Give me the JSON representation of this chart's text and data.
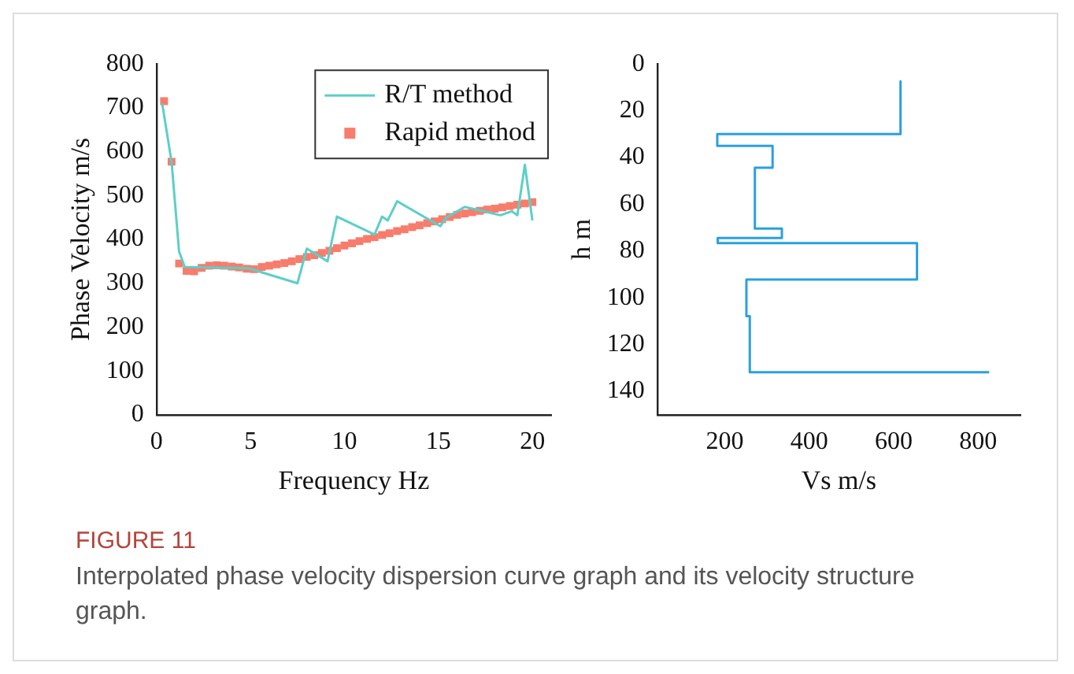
{
  "chart_data": [
    {
      "type": "line",
      "xlabel": "Frequency Hz",
      "ylabel": "Phase Velocity m/s",
      "xlim": [
        0,
        21
      ],
      "xticks": [
        0,
        5,
        10,
        15,
        20
      ],
      "ylim": [
        0,
        800
      ],
      "yticks": [
        0,
        100,
        200,
        300,
        400,
        500,
        600,
        700,
        800
      ],
      "grid": false,
      "legend": "top right",
      "annotations": [
        "FIGURE 11",
        "Interpolated phase velocity dispersion curve graph and its velocity structure graph."
      ],
      "series": [
        {
          "name": "R/T method",
          "color": "#5ccfc8",
          "marker": "none",
          "line_style": "solid",
          "x": [
            0.3,
            0.8,
            1.2,
            1.5,
            4.9,
            7.5,
            8.0,
            9.1,
            9.6,
            11.6,
            12.0,
            12.3,
            12.8,
            15.1,
            15.4,
            16.4,
            18.3,
            18.9,
            19.2,
            19.6,
            20.0
          ],
          "values": [
            710,
            577,
            372,
            337,
            334,
            300,
            379,
            350,
            452,
            411,
            452,
            443,
            487,
            430,
            449,
            474,
            455,
            464,
            455,
            570,
            443
          ]
        },
        {
          "name": "Rapid method",
          "type": "scatter",
          "color": "#f87c6c",
          "marker": "square",
          "x": [
            0.4,
            0.8,
            1.2,
            1.6,
            2.0,
            2.4,
            2.8,
            3.2,
            3.6,
            4.0,
            4.4,
            4.8,
            5.2,
            5.6,
            6.0,
            6.4,
            6.8,
            7.2,
            7.6,
            8.0,
            8.4,
            8.8,
            9.2,
            9.6,
            10.0,
            10.4,
            10.8,
            11.2,
            11.6,
            12.0,
            12.4,
            12.8,
            13.2,
            13.6,
            14.0,
            14.4,
            14.8,
            15.2,
            15.6,
            16.0,
            16.4,
            16.8,
            17.2,
            17.6,
            18.0,
            18.4,
            18.8,
            19.2,
            19.6,
            20.0
          ],
          "values": [
            715,
            577,
            345,
            328,
            327,
            335,
            340,
            341,
            340,
            338,
            336,
            333,
            332,
            337,
            340,
            343,
            346,
            350,
            355,
            360,
            364,
            369,
            374,
            380,
            386,
            391,
            396,
            401,
            405,
            410,
            414,
            419,
            423,
            428,
            432,
            437,
            441,
            446,
            451,
            456,
            459,
            462,
            465,
            468,
            470,
            473,
            476,
            479,
            482,
            485
          ]
        }
      ]
    },
    {
      "type": "line",
      "xlabel": "Vs m/s",
      "ylabel": "h m",
      "xlim": [
        40,
        900
      ],
      "xticks": [
        200,
        400,
        600,
        800
      ],
      "ylim": [
        150,
        0
      ],
      "yticks": [
        0,
        20,
        40,
        60,
        80,
        100,
        120,
        140
      ],
      "grid": false,
      "series": [
        {
          "color": "#2aa0e0",
          "marker": "none",
          "line_style": "solid",
          "x": [
            616,
            616,
            182,
            182,
            313,
            313,
            271,
            271,
            335,
            335,
            183,
            183,
            655,
            655,
            251,
            251,
            259,
            259,
            826
          ],
          "values": [
            7.4,
            30,
            30,
            35,
            35,
            44.4,
            44.4,
            70.4,
            70.4,
            74.4,
            74.4,
            76.6,
            76.6,
            92.2,
            92.2,
            107.8,
            107.8,
            131.8,
            131.8
          ]
        }
      ]
    }
  ]
}
